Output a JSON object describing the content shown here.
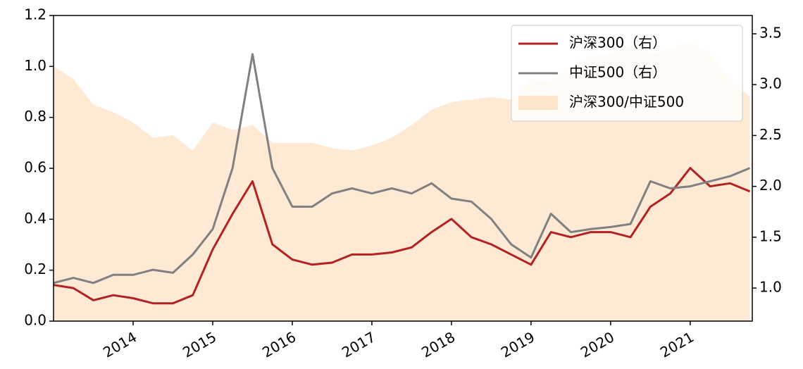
{
  "chart_data": {
    "type": "line",
    "x": [
      2013.0,
      2013.25,
      2013.5,
      2013.75,
      2014.0,
      2014.25,
      2014.5,
      2014.75,
      2015.0,
      2015.25,
      2015.5,
      2015.75,
      2016.0,
      2016.25,
      2016.5,
      2016.75,
      2017.0,
      2017.25,
      2017.5,
      2017.75,
      2018.0,
      2018.25,
      2018.5,
      2018.75,
      2019.0,
      2019.25,
      2019.5,
      2019.75,
      2020.0,
      2020.25,
      2020.5,
      2020.75,
      2021.0,
      2021.25,
      2021.5,
      2021.75
    ],
    "xlim": [
      2013.0,
      2021.78
    ],
    "xticks": [
      2014,
      2015,
      2016,
      2017,
      2018,
      2019,
      2020,
      2021
    ],
    "ylim": [
      0,
      1.2
    ],
    "yticks": [
      {
        "value": 0,
        "label": "0.0"
      },
      0.2,
      0.4,
      0.6,
      0.8,
      {
        "value": 1,
        "label": "1.0"
      },
      1.2
    ],
    "y2lim": [
      0.675,
      3.68
    ],
    "y2ticks": [
      {
        "value": 1,
        "label": "1.0"
      },
      1.5,
      {
        "value": 2,
        "label": "2.0"
      },
      2.5,
      {
        "value": 3,
        "label": "3.0"
      },
      3.5
    ],
    "legend": "upper right",
    "series": [
      {
        "name": "沪深300/中证500",
        "color": "#fde5cc",
        "fill": true,
        "axis": "y",
        "values": [
          1.0,
          0.95,
          0.85,
          0.82,
          0.78,
          0.72,
          0.73,
          0.67,
          0.78,
          0.75,
          0.77,
          0.7,
          0.7,
          0.7,
          0.68,
          0.67,
          0.69,
          0.72,
          0.77,
          0.83,
          0.86,
          0.87,
          0.88,
          0.87,
          0.95,
          0.94,
          1.0,
          1.04,
          1.05,
          1.08,
          1.05,
          1.07,
          1.1,
          1.05,
          0.95,
          0.88
        ]
      },
      {
        "name": "沪深300（右）",
        "color": "#b22222",
        "axis": "y2",
        "values": [
          1.03,
          1.0,
          0.88,
          0.93,
          0.9,
          0.85,
          0.85,
          0.93,
          1.38,
          1.73,
          2.05,
          1.43,
          1.28,
          1.23,
          1.25,
          1.33,
          1.33,
          1.35,
          1.4,
          1.55,
          1.68,
          1.5,
          1.43,
          1.33,
          1.23,
          1.55,
          1.5,
          1.55,
          1.55,
          1.5,
          1.8,
          1.93,
          2.18,
          2.0,
          2.03,
          1.95
        ]
      },
      {
        "name": "中证500（右）",
        "color": "#808080",
        "axis": "y2",
        "values": [
          1.05,
          1.1,
          1.05,
          1.13,
          1.13,
          1.18,
          1.15,
          1.33,
          1.58,
          2.18,
          3.3,
          2.18,
          1.8,
          1.8,
          1.93,
          1.98,
          1.93,
          1.98,
          1.93,
          2.03,
          1.88,
          1.85,
          1.68,
          1.43,
          1.3,
          1.73,
          1.55,
          1.58,
          1.6,
          1.63,
          2.05,
          1.98,
          2.0,
          2.05,
          2.1,
          2.18
        ]
      }
    ]
  }
}
